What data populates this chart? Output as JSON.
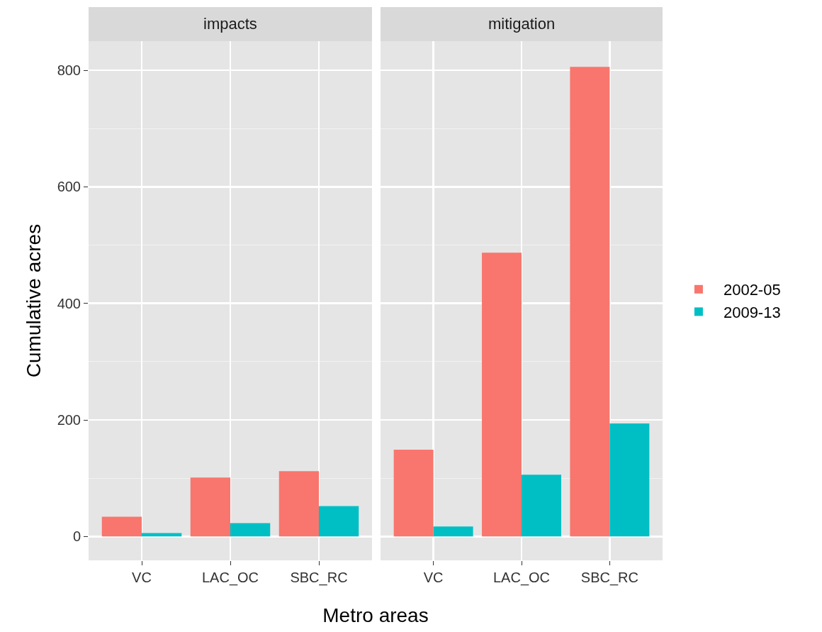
{
  "chart_data": [
    {
      "type": "bar",
      "title": "impacts",
      "ylabel": "Cumulative acres",
      "xlabel": "Metro areas",
      "categories": [
        "VC",
        "LAC_OC",
        "SBC_RC"
      ],
      "series": [
        {
          "color": "#f8766d",
          "values": [
            34,
            101,
            112
          ]
        },
        {
          "color": "#00bfc4",
          "values": [
            6,
            23,
            52
          ]
        }
      ],
      "ylim": [
        -41,
        850
      ],
      "yticks": [
        0,
        200,
        400,
        600,
        800
      ],
      "grid": true,
      "legend": false
    },
    {
      "type": "bar",
      "title": "mitigation",
      "categories": [
        "VC",
        "LAC_OC",
        "SBC_RC"
      ],
      "series": [
        {
          "name": "2002-05",
          "color": "#f8766d",
          "values": [
            149,
            487,
            806
          ]
        },
        {
          "name": "2009-13",
          "color": "#00bfc4",
          "values": [
            17,
            106,
            194
          ]
        }
      ],
      "ylim": [
        -41,
        850
      ],
      "yticks": [
        0,
        200,
        400,
        600,
        800
      ],
      "grid": true,
      "legend": "right",
      "tick_labels": "x"
    }
  ]
}
